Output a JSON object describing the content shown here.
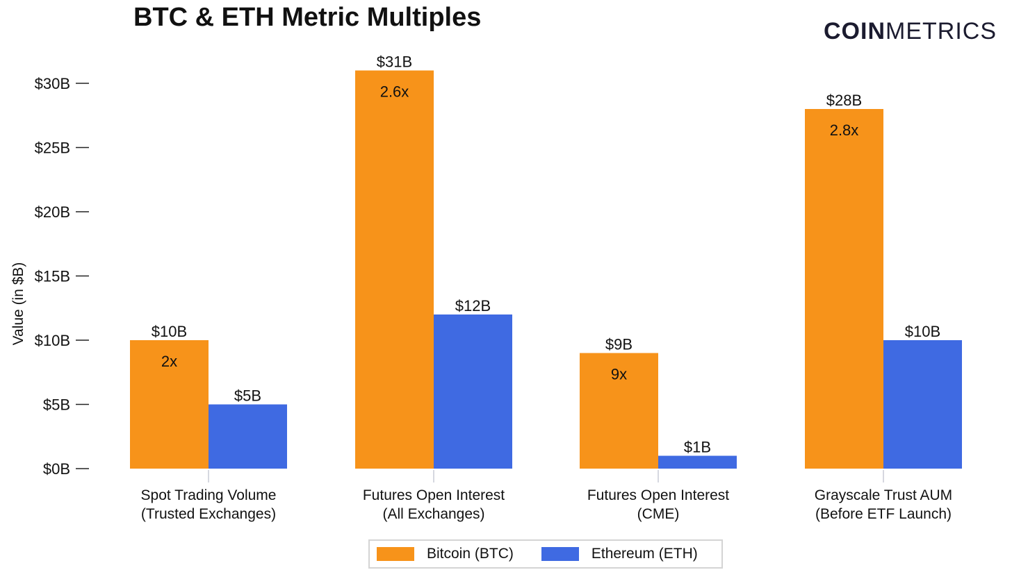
{
  "title": "BTC & ETH Metric Multiples",
  "brand": {
    "bold": "COIN",
    "light": "METRICS"
  },
  "legend": [
    {
      "label": "Bitcoin (BTC)",
      "color": "#F7931A"
    },
    {
      "label": "Ethereum (ETH)",
      "color": "#3F6AE2"
    }
  ],
  "chart_data": {
    "type": "bar",
    "title": "BTC & ETH Metric Multiples",
    "xlabel": "",
    "ylabel": "Value (in $B)",
    "ylim": [
      0,
      30
    ],
    "yticks": [
      0,
      5,
      10,
      15,
      20,
      25,
      30
    ],
    "ytick_labels": [
      "$0B",
      "$5B",
      "$10B",
      "$15B",
      "$20B",
      "$25B",
      "$30B"
    ],
    "grid": false,
    "legend_position": "bottom",
    "categories": [
      [
        "Spot Trading Volume",
        "(Trusted Exchanges)"
      ],
      [
        "Futures Open Interest",
        "(All Exchanges)"
      ],
      [
        "Futures Open Interest",
        "(CME)"
      ],
      [
        "Grayscale Trust AUM",
        "(Before ETF Launch)"
      ]
    ],
    "series": [
      {
        "name": "Bitcoin (BTC)",
        "color": "#F7931A",
        "values": [
          10,
          31,
          9,
          28
        ],
        "labels": [
          "$10B",
          "$31B",
          "$9B",
          "$28B"
        ]
      },
      {
        "name": "Ethereum (ETH)",
        "color": "#3F6AE2",
        "values": [
          5,
          12,
          1,
          10
        ],
        "labels": [
          "$5B",
          "$12B",
          "$1B",
          "$10B"
        ]
      }
    ],
    "annotations": [
      "2x",
      "2.6x",
      "9x",
      "2.8x"
    ]
  }
}
